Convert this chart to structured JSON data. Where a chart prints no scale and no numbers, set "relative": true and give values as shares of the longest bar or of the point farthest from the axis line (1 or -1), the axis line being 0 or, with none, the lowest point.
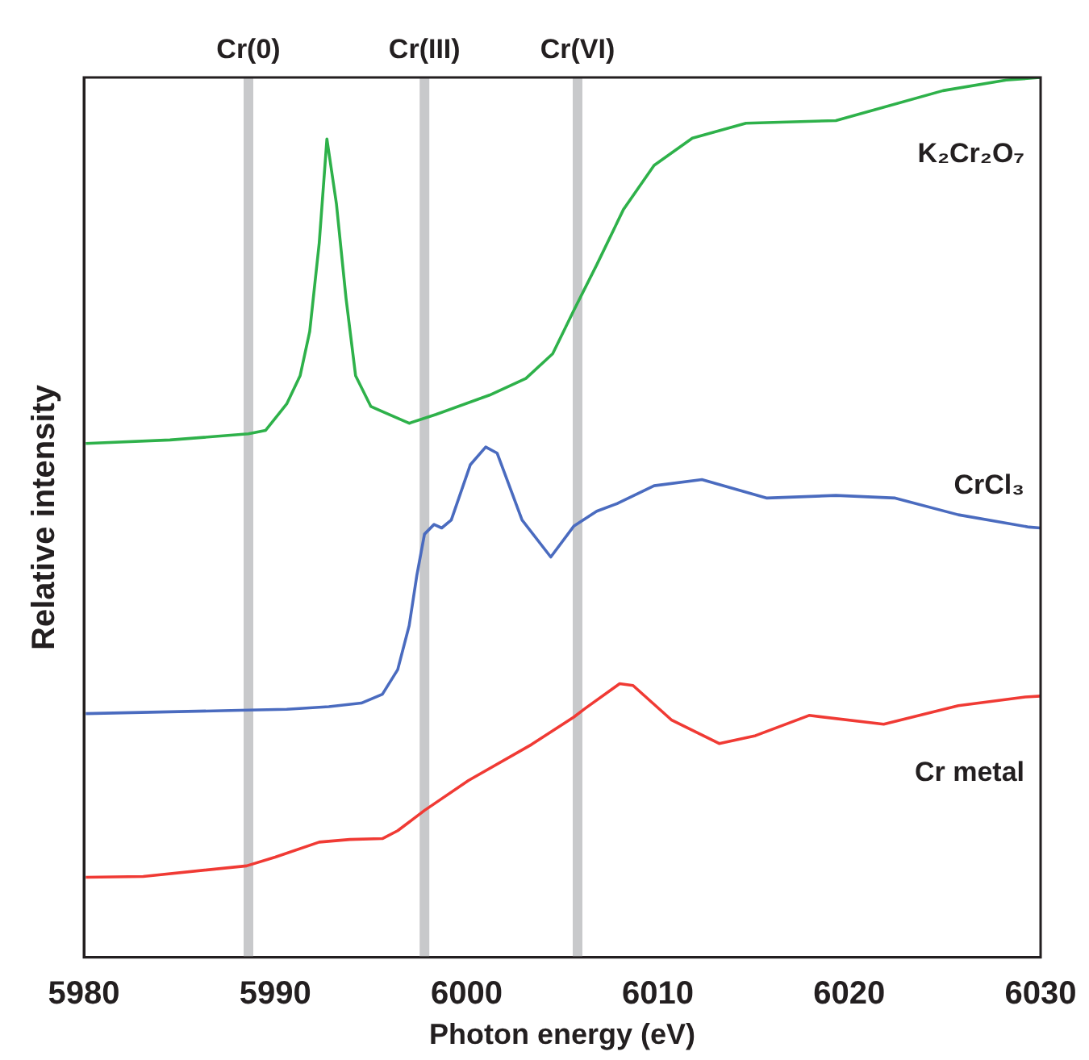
{
  "chart_data": {
    "type": "line",
    "xlabel": "Photon energy (eV)",
    "ylabel": "Relative intensity",
    "relative": true,
    "xlim": [
      5980,
      6030
    ],
    "xticks": [
      5980,
      5990,
      6000,
      6010,
      6020,
      6030
    ],
    "marker": "none",
    "line_style": "solid",
    "legend": false,
    "ref_lines": [
      {
        "axis": "x",
        "value": 5988.6,
        "label": "Cr(0)",
        "color": "#c8c9cb"
      },
      {
        "axis": "x",
        "value": 5997.8,
        "label": "Cr(III)",
        "color": "#c8c9cb"
      },
      {
        "axis": "x",
        "value": 6005.8,
        "label": "Cr(VI)",
        "color": "#c8c9cb"
      }
    ],
    "series": [
      {
        "name": "K₂Cr₂O₇",
        "color": "#2eb14a",
        "x": [
          5980.1,
          5984.5,
          5988.6,
          5989.5,
          5990.6,
          5991.3,
          5991.8,
          5992.3,
          5992.7,
          5993.2,
          5993.7,
          5994.2,
          5995.0,
          5997.0,
          5998.4,
          6001.2,
          6003.1,
          6004.5,
          6005.6,
          6006.8,
          6008.2,
          6009.8,
          6011.8,
          6014.6,
          6019.3,
          6021.3,
          6024.9,
          6028.2,
          6030
        ],
        "values": [
          0.584,
          0.588,
          0.595,
          0.599,
          0.629,
          0.661,
          0.711,
          0.812,
          0.93,
          0.856,
          0.749,
          0.661,
          0.626,
          0.607,
          0.617,
          0.639,
          0.658,
          0.686,
          0.735,
          0.787,
          0.85,
          0.9,
          0.931,
          0.948,
          0.951,
          0.963,
          0.985,
          0.997,
          1.0
        ]
      },
      {
        "name": "CrCl₃",
        "color": "#4a6bbf",
        "x": [
          5980.1,
          5988.6,
          5990.6,
          5992.8,
          5994.5,
          5995.6,
          5996.4,
          5997.0,
          5997.4,
          5997.8,
          5998.3,
          5998.7,
          5999.2,
          6000.2,
          6001.0,
          6001.6,
          6002.9,
          6004.4,
          6005.6,
          6006.8,
          6007.9,
          6009.8,
          6012.3,
          6015.7,
          6019.3,
          6022.4,
          6025.7,
          6029.4,
          6030
        ],
        "values": [
          0.277,
          0.281,
          0.282,
          0.285,
          0.289,
          0.299,
          0.327,
          0.377,
          0.434,
          0.481,
          0.492,
          0.488,
          0.497,
          0.56,
          0.58,
          0.573,
          0.497,
          0.455,
          0.49,
          0.507,
          0.516,
          0.536,
          0.543,
          0.522,
          0.525,
          0.522,
          0.503,
          0.489,
          0.488
        ]
      },
      {
        "name": "Cr metal",
        "color": "#f03a34",
        "x": [
          5980.1,
          5983.1,
          5988.5,
          5990.0,
          5992.3,
          5993.9,
          5995.6,
          5996.4,
          5997.8,
          6000.1,
          6003.4,
          6005.6,
          6006.2,
          6008.0,
          6008.7,
          6010.7,
          6013.2,
          6015.1,
          6017.9,
          6021.8,
          6025.7,
          6029.2,
          6030
        ],
        "values": [
          0.091,
          0.092,
          0.104,
          0.114,
          0.131,
          0.134,
          0.135,
          0.144,
          0.167,
          0.201,
          0.242,
          0.273,
          0.283,
          0.311,
          0.309,
          0.27,
          0.243,
          0.252,
          0.275,
          0.265,
          0.286,
          0.296,
          0.297
        ]
      }
    ]
  }
}
